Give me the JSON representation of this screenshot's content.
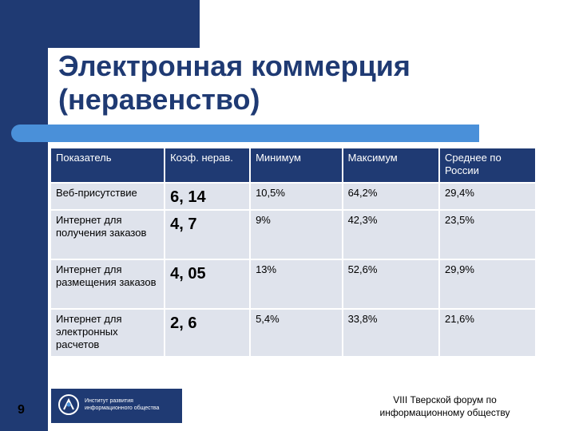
{
  "title": "Электронная коммерция\n(неравенство)",
  "table": {
    "headers": [
      "Показатель",
      "Коэф. нерав.",
      "Минимум",
      "Максимум",
      "Среднее по России"
    ],
    "rows": [
      [
        "Веб-присутствие",
        "6, 14",
        "10,5%",
        "64,2%",
        "29,4%"
      ],
      [
        "Интернет для получения заказов",
        "4, 7",
        "9%",
        "42,3%",
        "23,5%"
      ],
      [
        "Интернет для размещения заказов",
        "4, 05",
        "13%",
        "52,6%",
        "29,9%"
      ],
      [
        "Интернет для электронных расчетов",
        "2, 6",
        "5,4%",
        "33,8%",
        "21,6%"
      ]
    ]
  },
  "page_number": "9",
  "logo": {
    "icon": "institute-emblem-icon",
    "line1": "Институт развития",
    "line2": "информационного общества"
  },
  "footer": "VIII Тверской форум по информационному обществу",
  "colors": {
    "navy": "#1f3a73",
    "accent_blue": "#4a90d9",
    "cell_gray": "#dfe3ec"
  }
}
